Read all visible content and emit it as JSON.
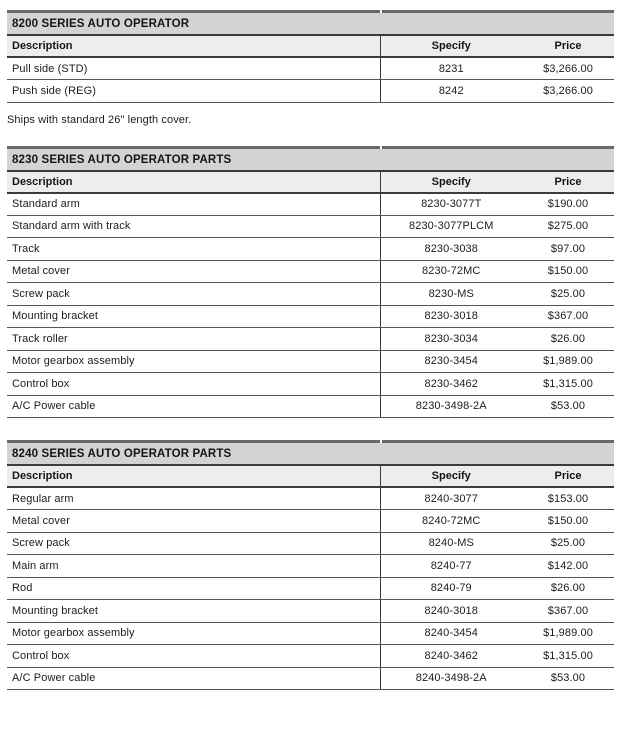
{
  "columns": {
    "description": "Description",
    "specify": "Specify",
    "price": "Price"
  },
  "note_after_first_table": "Ships with standard 26\" length cover.",
  "tables": [
    {
      "title": "8200 SERIES AUTO OPERATOR",
      "rows": [
        {
          "description": "Pull side (STD)",
          "specify": "8231",
          "price": "$3,266.00"
        },
        {
          "description": "Push side (REG)",
          "specify": "8242",
          "price": "$3,266.00"
        }
      ]
    },
    {
      "title": "8230 SERIES AUTO OPERATOR PARTS",
      "rows": [
        {
          "description": "Standard arm",
          "specify": "8230-3077T",
          "price": "$190.00"
        },
        {
          "description": "Standard arm with track",
          "specify": "8230-3077PLCM",
          "price": "$275.00"
        },
        {
          "description": "Track",
          "specify": "8230-3038",
          "price": "$97.00"
        },
        {
          "description": "Metal cover",
          "specify": "8230-72MC",
          "price": "$150.00"
        },
        {
          "description": "Screw pack",
          "specify": "8230-MS",
          "price": "$25.00"
        },
        {
          "description": "Mounting bracket",
          "specify": "8230-3018",
          "price": "$367.00"
        },
        {
          "description": "Track roller",
          "specify": "8230-3034",
          "price": "$26.00"
        },
        {
          "description": "Motor gearbox assembly",
          "specify": "8230-3454",
          "price": "$1,989.00"
        },
        {
          "description": "Control box",
          "specify": "8230-3462",
          "price": "$1,315.00"
        },
        {
          "description": "A/C Power cable",
          "specify": "8230-3498-2A",
          "price": "$53.00"
        }
      ]
    },
    {
      "title": "8240 SERIES AUTO OPERATOR PARTS",
      "rows": [
        {
          "description": "Regular arm",
          "specify": "8240-3077",
          "price": "$153.00"
        },
        {
          "description": "Metal cover",
          "specify": "8240-72MC",
          "price": "$150.00"
        },
        {
          "description": "Screw pack",
          "specify": "8240-MS",
          "price": "$25.00"
        },
        {
          "description": "Main arm",
          "specify": "8240-77",
          "price": "$142.00"
        },
        {
          "description": "Rod",
          "specify": "8240-79",
          "price": "$26.00"
        },
        {
          "description": "Mounting bracket",
          "specify": "8240-3018",
          "price": "$367.00"
        },
        {
          "description": "Motor gearbox assembly",
          "specify": "8240-3454",
          "price": "$1,989.00"
        },
        {
          "description": "Control box",
          "specify": "8240-3462",
          "price": "$1,315.00"
        },
        {
          "description": "A/C Power cable",
          "specify": "8240-3498-2A",
          "price": "$53.00"
        }
      ]
    }
  ],
  "colors": {
    "title-bg": "#d2d3d4",
    "header-bg": "#ededee",
    "border-heavy": "#3b3c3e",
    "border-row": "#54555a",
    "topbar": "#67686a",
    "text": "#1b1c1e",
    "page-bg": "#ffffff"
  }
}
